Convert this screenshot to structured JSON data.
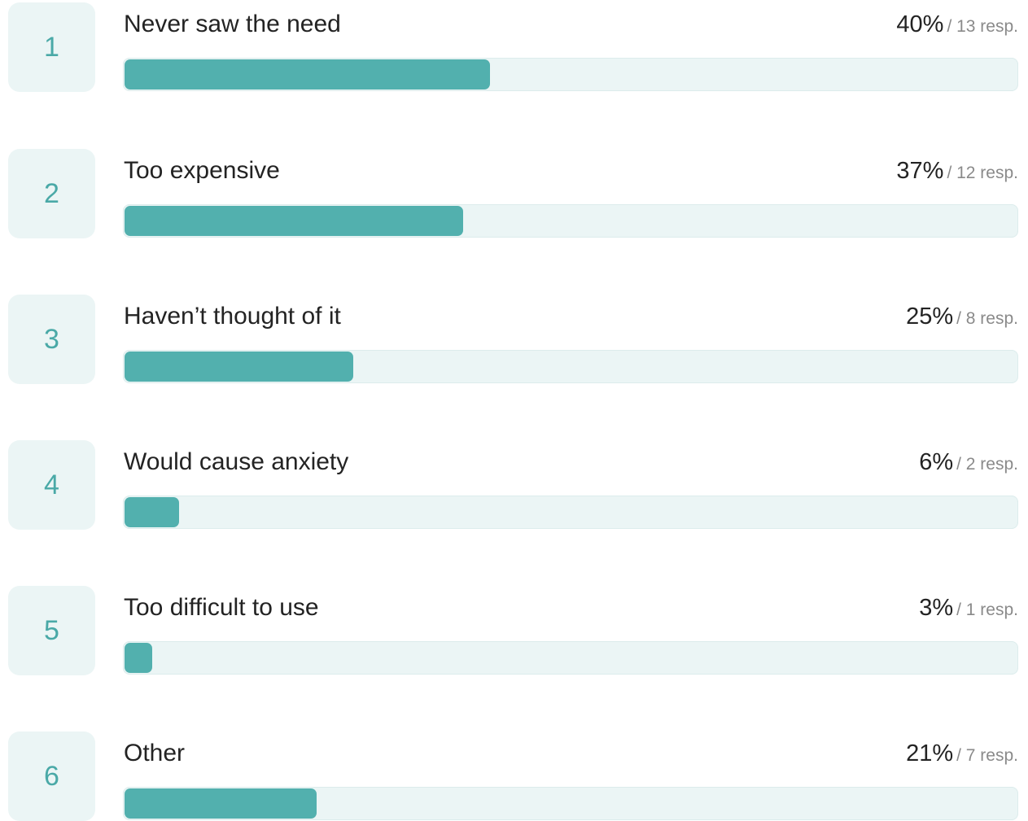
{
  "chart_data": {
    "type": "bar",
    "orientation": "horizontal",
    "categories": [
      "Never saw the need",
      "Too expensive",
      "Haven’t thought of it",
      "Would cause anxiety",
      "Too difficult to use",
      "Other"
    ],
    "ranks": [
      "1",
      "2",
      "3",
      "4",
      "5",
      "6"
    ],
    "percent_labels": [
      "40%",
      "37%",
      "25%",
      "6%",
      "3%",
      "21%"
    ],
    "response_labels": [
      "/ 13 resp.",
      "/ 12 resp.",
      "/ 8 resp.",
      "/ 2 resp.",
      "/ 1 resp.",
      "/ 7 resp."
    ],
    "values": [
      40,
      37,
      25,
      6,
      3,
      21
    ],
    "responses": [
      13,
      12,
      8,
      2,
      1,
      7
    ],
    "xlim": [
      0,
      100
    ]
  },
  "colors": {
    "bar_fill": "#52b0ae",
    "bar_track": "#ebf5f5",
    "rank_text": "#4aa9a7",
    "rank_background": "#ebf5f5"
  }
}
